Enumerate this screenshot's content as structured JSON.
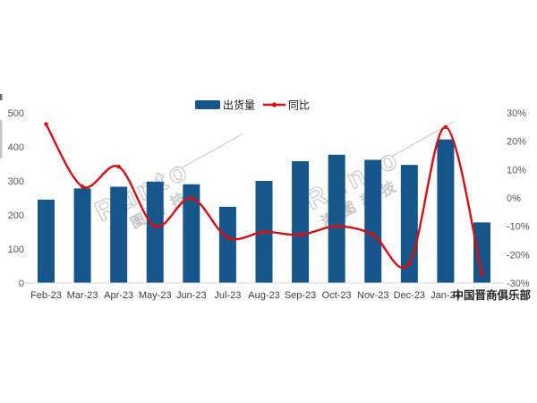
{
  "legend": [
    {
      "label": "出货量",
      "type": "bar",
      "color": "#17568A"
    },
    {
      "label": "同比",
      "type": "line",
      "color": "#DE0D0D"
    }
  ],
  "watermarks": {
    "brand": "Runto",
    "brand_cn": "洛图科技",
    "club": "中国晋商俱乐部"
  },
  "chart_data": {
    "type": "bar+line",
    "title": "",
    "categories": [
      "Feb-23",
      "Mar-23",
      "Apr-23",
      "May-23",
      "Jun-23",
      "Jul-23",
      "Aug-23",
      "Sep-23",
      "Oct-23",
      "Nov-23",
      "Dec-23",
      "Jan-24",
      ""
    ],
    "series": [
      {
        "name": "出货量",
        "type": "bar",
        "axis": "left",
        "color": "#17568A",
        "values": [
          245,
          278,
          283,
          298,
          290,
          224,
          300,
          358,
          377,
          362,
          347,
          422,
          178
        ]
      },
      {
        "name": "同比",
        "type": "line",
        "axis": "right",
        "color": "#DE0D0D",
        "values_pct": [
          26,
          4,
          11,
          -10,
          0,
          -14,
          -12,
          -13,
          -10,
          -13,
          -23,
          25,
          -27
        ]
      }
    ],
    "left_axis": {
      "ticks": [
        "0",
        "100",
        "200",
        "300",
        "400",
        "500"
      ],
      "range": [
        0,
        500
      ]
    },
    "right_axis": {
      "ticks": [
        "30%",
        "20%",
        "10%",
        "0%",
        "-10%",
        "-20%",
        "-30%"
      ],
      "range": [
        -30,
        30
      ]
    },
    "grid": false,
    "legend_position": "top-center",
    "colors": {
      "axis_text": "#595959",
      "x_label_text": "#3f3f3f",
      "baseline": "#d9d9d9",
      "watermark": "#b5b5b5",
      "club_text": "#262626"
    }
  }
}
